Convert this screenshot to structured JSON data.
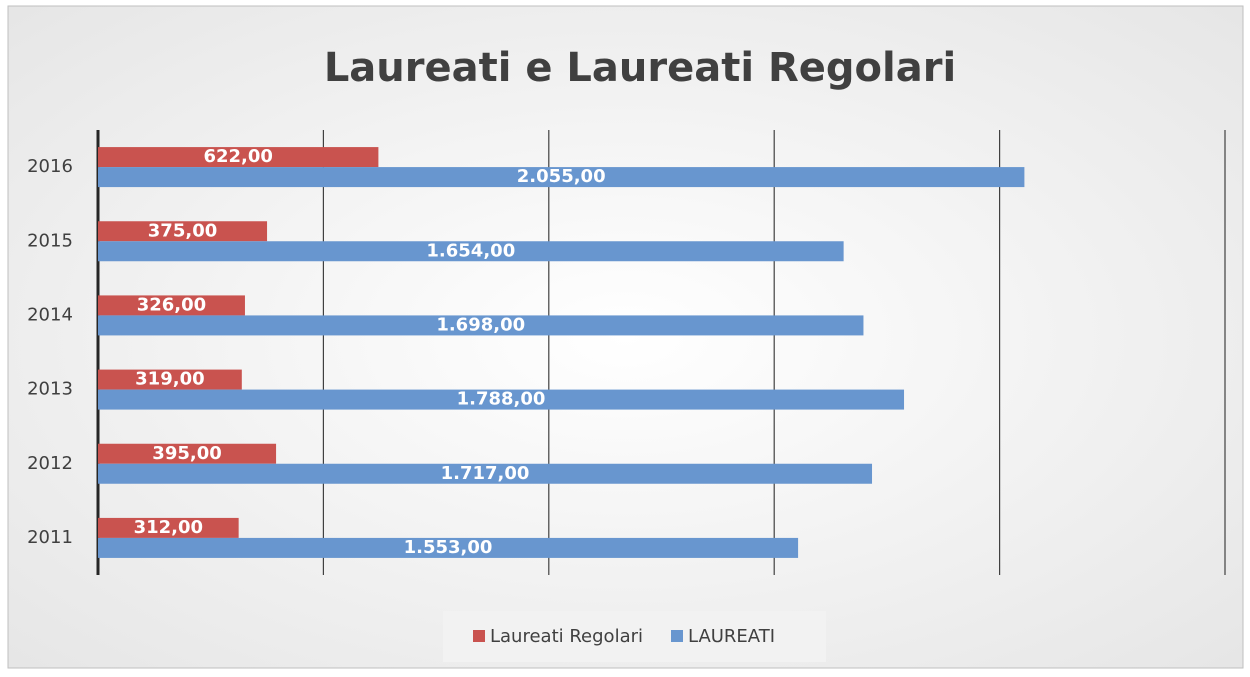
{
  "chart_data": {
    "type": "hbar",
    "title": "Laureati e Laureati Regolari",
    "categories": [
      "2011",
      "2012",
      "2013",
      "2014",
      "2015",
      "2016"
    ],
    "series": [
      {
        "name": "Laureati Regolari",
        "color": "#c9534f",
        "values": [
          312,
          395,
          319,
          326,
          375,
          622
        ],
        "value_labels": [
          "312,00",
          "395,00",
          "319,00",
          "326,00",
          "375,00",
          "622,00"
        ]
      },
      {
        "name": "LAUREATI",
        "color": "#6896cf",
        "values": [
          1553,
          1717,
          1788,
          1698,
          1654,
          2055
        ],
        "value_labels": [
          "1.553,00",
          "1.717,00",
          "1.788,00",
          "1.698,00",
          "1.654,00",
          "2.055,00"
        ]
      }
    ],
    "xlim": [
      0,
      2500
    ],
    "xticks": [
      0,
      500,
      1000,
      1500,
      2000,
      2500
    ],
    "grid": true,
    "legend": "bottom"
  }
}
